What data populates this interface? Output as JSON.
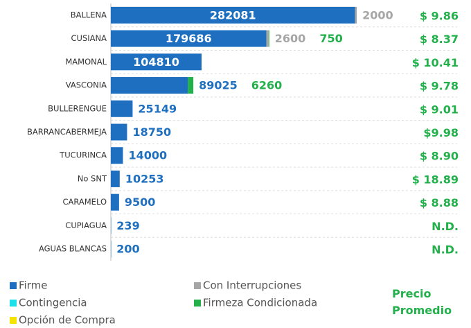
{
  "chart_data": {
    "type": "stacked-bar-horizontal",
    "categories": [
      "BALLENA",
      "CUSIANA",
      "MAMONAL",
      "VASCONIA",
      "BULLERENGUE",
      "BARRANCABERMEJA",
      "TUCURINCA",
      "No SNT",
      "CARAMELO",
      "CUPIAGUA",
      "AGUAS BLANCAS"
    ],
    "series": [
      {
        "name": "Firme",
        "color": "#1f6fc0",
        "values": [
          282081,
          179686,
          104810,
          89025,
          25149,
          18750,
          14000,
          10253,
          9500,
          239,
          200
        ]
      },
      {
        "name": "Contingencia",
        "color": "#1fe0e8",
        "values": [
          null,
          null,
          null,
          null,
          null,
          null,
          null,
          null,
          null,
          null,
          null
        ]
      },
      {
        "name": "Opción de Compra",
        "color": "#f5e400",
        "values": [
          null,
          null,
          null,
          null,
          null,
          null,
          null,
          null,
          null,
          null,
          null
        ]
      },
      {
        "name": "Con Interrupciones",
        "color": "#a6a6a6",
        "values": [
          2000,
          2600,
          null,
          null,
          null,
          null,
          null,
          null,
          null,
          null,
          null
        ]
      },
      {
        "name": "Firmeza Condicionada",
        "color": "#22b04b",
        "values": [
          null,
          750,
          null,
          6260,
          null,
          null,
          null,
          null,
          null,
          null,
          null
        ]
      }
    ],
    "xlim": [
      0,
      400000
    ],
    "prices": {
      "title": "Precio Promedio",
      "color": "#22b04b",
      "values": [
        9.86,
        8.37,
        10.41,
        9.78,
        9.01,
        9.98,
        8.9,
        18.89,
        8.88,
        null,
        null
      ],
      "value_labels": [
        "$ 9.86",
        "$ 8.37",
        "$ 10.41",
        "$ 9.78",
        "$ 9.01",
        "$9.98",
        "$ 8.90",
        "$ 18.89",
        "$ 8.88",
        "N.D.",
        "N.D."
      ]
    },
    "legend": "bottom"
  }
}
